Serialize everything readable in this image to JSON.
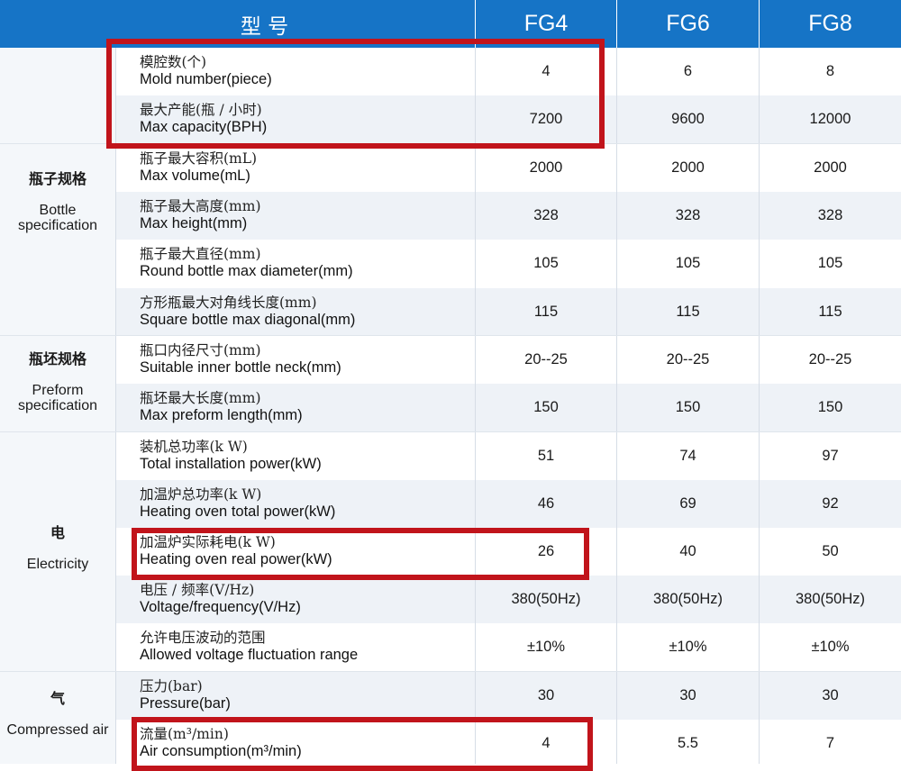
{
  "header": {
    "model_label": "型 号",
    "models": [
      "FG4",
      "FG6",
      "FG8"
    ]
  },
  "categories": [
    {
      "cn": "",
      "en": ""
    },
    {
      "cn": "瓶子规格",
      "en": "Bottle specification"
    },
    {
      "cn": "瓶坯规格",
      "en": "Preform specification"
    },
    {
      "cn": "电",
      "en": "Electricity"
    },
    {
      "cn": "气",
      "en": "Compressed air"
    }
  ],
  "rows": [
    {
      "cn": "模腔数(个)",
      "en": "Mold number(piece)",
      "values": [
        "4",
        "6",
        "8"
      ]
    },
    {
      "cn": "最大产能(瓶 / 小时)",
      "en": "Max capacity(BPH)",
      "values": [
        "7200",
        "9600",
        "12000"
      ]
    },
    {
      "cn": "瓶子最大容积(mL)",
      "en": "Max volume(mL)",
      "values": [
        "2000",
        "2000",
        "2000"
      ]
    },
    {
      "cn": "瓶子最大高度(mm)",
      "en": "Max height(mm)",
      "values": [
        "328",
        "328",
        "328"
      ]
    },
    {
      "cn": "瓶子最大直径(mm)",
      "en": "Round bottle max diameter(mm)",
      "values": [
        "105",
        "105",
        "105"
      ]
    },
    {
      "cn": "方形瓶最大对角线长度(mm)",
      "en": "Square bottle max diagonal(mm)",
      "values": [
        "115",
        "115",
        "115"
      ]
    },
    {
      "cn": "瓶口内径尺寸(mm)",
      "en": "Suitable inner bottle neck(mm)",
      "values": [
        "20--25",
        "20--25",
        "20--25"
      ]
    },
    {
      "cn": "瓶坯最大长度(mm)",
      "en": "Max preform length(mm)",
      "values": [
        "150",
        "150",
        "150"
      ]
    },
    {
      "cn": "装机总功率(k W)",
      "en": "Total installation power(kW)",
      "values": [
        "51",
        "74",
        "97"
      ]
    },
    {
      "cn": "加温炉总功率(k W)",
      "en": "Heating oven total power(kW)",
      "values": [
        "46",
        "69",
        "92"
      ]
    },
    {
      "cn": "加温炉实际耗电(k W)",
      "en": "Heating oven real power(kW)",
      "values": [
        "26",
        "40",
        "50"
      ]
    },
    {
      "cn": "电压 / 频率(V/Hz)",
      "en": "Voltage/frequency(V/Hz)",
      "values": [
        "380(50Hz)",
        "380(50Hz)",
        "380(50Hz)"
      ]
    },
    {
      "cn": "允许电压波动的范围",
      "en": "Allowed voltage fluctuation range",
      "values": [
        "±10%",
        "±10%",
        "±10%"
      ]
    },
    {
      "cn": "压力(bar)",
      "en": "Pressure(bar)",
      "values": [
        "30",
        "30",
        "30"
      ]
    },
    {
      "cn": "流量(m³/min)",
      "en": "Air consumption(m³/min)",
      "values": [
        "4",
        "5.5",
        "7"
      ]
    }
  ],
  "colors": {
    "header_bg": "#1674c6",
    "highlight": "#c1141b",
    "row_shade": "#eef2f7"
  }
}
